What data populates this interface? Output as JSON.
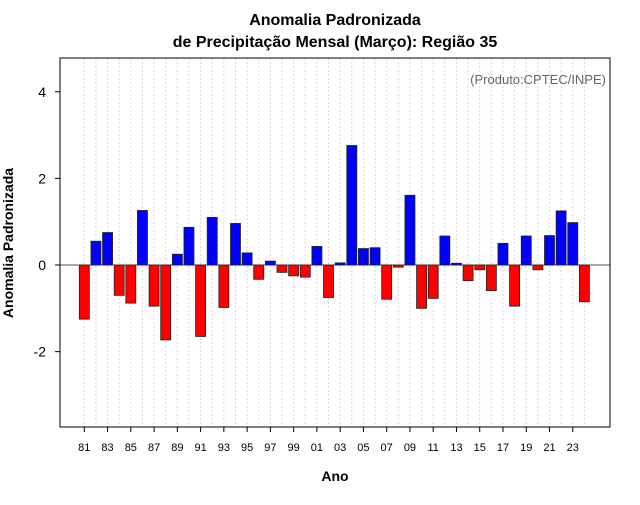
{
  "chart_data": {
    "type": "bar",
    "title_line1": "Anomalia Padronizada",
    "title_line2": "de Precipitação Mensal (Março): Região 35",
    "annotation": "(Produto:CPTEC/INPE)",
    "xlabel": "Ano",
    "ylabel": "Anomalia Padronizada",
    "ylim": [
      -3.74,
      4.78
    ],
    "yticks": [
      -2,
      0,
      2,
      4
    ],
    "ytick_labels": [
      "-2",
      "0",
      "2",
      "4"
    ],
    "grid": "vertical dotted",
    "positive_color": "#0000ff",
    "negative_color": "#ff0000",
    "categories": [
      1981,
      1982,
      1983,
      1984,
      1985,
      1986,
      1987,
      1988,
      1989,
      1990,
      1991,
      1992,
      1993,
      1994,
      1995,
      1996,
      1997,
      1998,
      1999,
      2000,
      2001,
      2002,
      2003,
      2004,
      2005,
      2006,
      2007,
      2008,
      2009,
      2010,
      2011,
      2012,
      2013,
      2014,
      2015,
      2016,
      2017,
      2018,
      2019,
      2020,
      2021,
      2022,
      2023,
      2024
    ],
    "xtick_labels": [
      "81",
      "83",
      "85",
      "87",
      "89",
      "91",
      "93",
      "95",
      "97",
      "99",
      "01",
      "03",
      "05",
      "07",
      "09",
      "11",
      "13",
      "15",
      "17",
      "19",
      "21",
      "23"
    ],
    "values": [
      -1.25,
      0.55,
      0.75,
      -0.7,
      -0.88,
      1.26,
      -0.95,
      -1.73,
      0.25,
      0.87,
      -1.65,
      1.1,
      -0.98,
      0.96,
      0.28,
      -0.33,
      0.09,
      -0.17,
      -0.25,
      -0.28,
      0.43,
      -0.75,
      0.05,
      2.76,
      0.38,
      0.4,
      -0.79,
      -0.05,
      1.61,
      -1.0,
      -0.77,
      0.67,
      0.04,
      -0.36,
      -0.11,
      -0.59,
      0.5,
      -0.95,
      0.67,
      -0.11,
      0.68,
      1.25,
      0.98,
      -0.85
    ]
  }
}
